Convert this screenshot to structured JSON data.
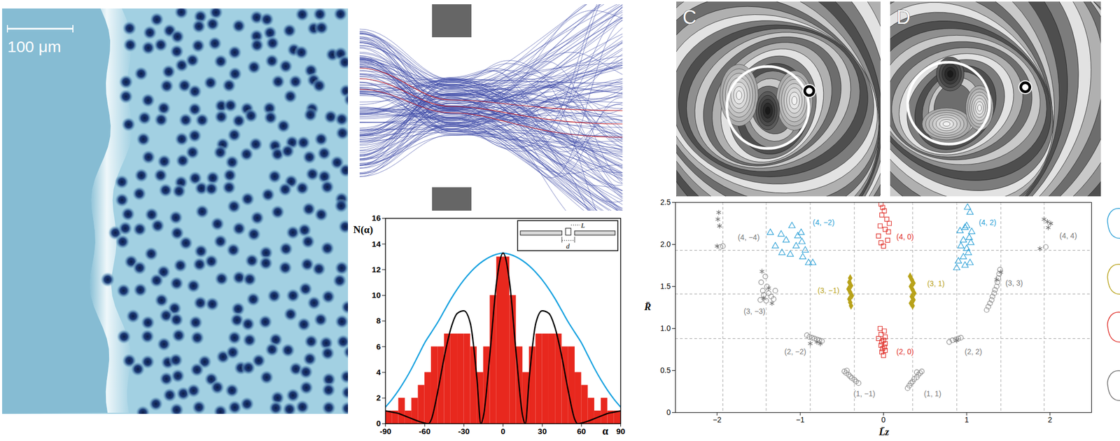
{
  "micrograph": {
    "scale_bar": "100 μm"
  },
  "contour_panels": {
    "labels": [
      "C",
      "D"
    ]
  },
  "chart_data": [
    {
      "type": "histogram",
      "ylabel": "N(α)",
      "xlabel": "α",
      "bins": [
        -90,
        -85,
        -80,
        -75,
        -70,
        -65,
        -60,
        -55,
        -50,
        -45,
        -40,
        -35,
        -30,
        -25,
        -20,
        -15,
        -10,
        -5,
        0,
        5,
        10,
        15,
        20,
        25,
        30,
        35,
        40,
        45,
        50,
        55,
        60,
        65,
        70,
        75,
        80,
        85,
        90
      ],
      "values": [
        1,
        1,
        2,
        1,
        2,
        3,
        4,
        6,
        6,
        7,
        7,
        7,
        7,
        6,
        4,
        6,
        10,
        13,
        13,
        10,
        6,
        4,
        6,
        7,
        7,
        7,
        7,
        6,
        6,
        4,
        3,
        2,
        1,
        2,
        1,
        1
      ],
      "color": "#e8281e",
      "xlim": [
        -90,
        90
      ],
      "xticks": [
        -90,
        -60,
        -30,
        0,
        30,
        60,
        90
      ],
      "ylim": [
        0,
        16
      ],
      "yticks": [
        0,
        2,
        4,
        6,
        8,
        10,
        12,
        14,
        16
      ],
      "series": [
        {
          "type": "line",
          "color": "#1ba3e0",
          "x": [
            -90,
            -85,
            -80,
            -75,
            -70,
            -65,
            -60,
            -55,
            -50,
            -45,
            -40,
            -35,
            -30,
            -25,
            -20,
            -15,
            -10,
            -5,
            0,
            5,
            10,
            15,
            20,
            25,
            30,
            35,
            40,
            45,
            50,
            55,
            60,
            65,
            70,
            75,
            80,
            85,
            90
          ],
          "values": [
            1.3,
            1.9,
            2.6,
            3.4,
            4.3,
            5.3,
            6.3,
            7.1,
            7.9,
            8.8,
            9.7,
            10.5,
            11.2,
            11.8,
            12.3,
            12.7,
            13.0,
            13.2,
            13.3,
            13.2,
            13.0,
            12.7,
            12.3,
            11.8,
            11.2,
            10.5,
            9.7,
            8.8,
            7.9,
            7.1,
            6.3,
            5.3,
            4.3,
            3.4,
            2.6,
            1.9,
            1.3
          ]
        },
        {
          "type": "line",
          "color": "#000000",
          "x": [
            -90,
            -85,
            -80,
            -75,
            -70,
            -65,
            -60,
            -57,
            -55,
            -50,
            -45,
            -40,
            -35,
            -30,
            -25,
            -20,
            -17,
            -15,
            -10,
            -5,
            0,
            5,
            10,
            15,
            17,
            20,
            25,
            30,
            35,
            40,
            45,
            50,
            55,
            57,
            60,
            65,
            70,
            75,
            80,
            85,
            90
          ],
          "values": [
            1.0,
            0.9,
            0.8,
            0.6,
            0.4,
            0.2,
            0.05,
            0,
            0.3,
            2.5,
            5.2,
            7.4,
            8.6,
            8.8,
            7.8,
            3.5,
            0,
            0.6,
            5.5,
            11.0,
            13.3,
            11.0,
            5.5,
            0.6,
            0,
            3.5,
            7.8,
            8.8,
            8.6,
            7.4,
            5.2,
            2.5,
            0.3,
            0,
            0.05,
            0.2,
            0.4,
            0.6,
            0.8,
            0.9,
            1.0
          ]
        }
      ],
      "inset_labels": [
        "L",
        "d"
      ]
    },
    {
      "type": "scatter",
      "xlabel": "L̄z",
      "ylabel": "R̄",
      "xlim": [
        -2.5,
        2.5
      ],
      "xticks": [
        {
          "value": -2,
          "label": "−2"
        },
        {
          "value": -1,
          "label": "−1"
        },
        0,
        1,
        2
      ],
      "ylim": [
        0,
        2.5
      ],
      "yticks": [
        0,
        0.5,
        {
          "value": 1,
          "label": "1.0"
        },
        1.5,
        {
          "value": 2,
          "label": "2.0"
        },
        2.5
      ],
      "reference_lines": {
        "x": [
          -1.93,
          -1.41,
          -0.88,
          -0.35,
          0.35,
          0.88,
          1.41,
          1.93
        ],
        "y": [
          0.88,
          1.41,
          1.93
        ],
        "line_style": "dashed"
      },
      "series": [
        {
          "color": "#8a8a8a",
          "marker": "circle",
          "x": [
            0.29,
            0.31,
            0.33,
            0.35,
            0.37,
            0.4,
            0.42,
            0.44,
            0.46,
            0.4,
            -0.3,
            -0.33,
            -0.35,
            -0.38,
            -0.4,
            -0.42,
            -0.45,
            -0.47,
            -0.44,
            -0.92,
            -0.89,
            -0.86,
            -0.83,
            -0.8,
            -0.77,
            -0.74,
            0.83,
            0.87,
            0.9,
            0.93,
            0.79,
            -1.42,
            -1.47,
            -1.4,
            -1.45,
            -1.38,
            -1.35,
            -1.32,
            -1.44,
            -1.48,
            -1.3,
            -1.41,
            1.24,
            1.26,
            1.28,
            1.3,
            1.31,
            1.33,
            1.34,
            1.36,
            1.37,
            1.38,
            1.39,
            1.4,
            -1.96,
            -1.93,
            1.95
          ],
          "values": [
            0.29,
            0.32,
            0.35,
            0.37,
            0.4,
            0.42,
            0.45,
            0.47,
            0.49,
            0.48,
            0.35,
            0.37,
            0.39,
            0.41,
            0.43,
            0.45,
            0.47,
            0.49,
            0.5,
            0.92,
            0.9,
            0.89,
            0.88,
            0.87,
            0.86,
            0.85,
            0.86,
            0.87,
            0.88,
            0.89,
            0.84,
            1.62,
            1.55,
            1.5,
            1.45,
            1.42,
            1.38,
            1.35,
            1.4,
            1.34,
            1.45,
            1.33,
            1.22,
            1.26,
            1.3,
            1.34,
            1.38,
            1.42,
            1.46,
            1.5,
            1.55,
            1.6,
            1.65,
            1.7,
            1.97,
            1.98,
            1.97
          ]
        },
        {
          "color": "#6e6e6e",
          "marker": "asterisk",
          "x": [
            -1.98,
            -1.99,
            -1.97,
            -2.0,
            1.93,
            1.97,
            2.01,
            1.98,
            1.88,
            -1.46,
            -1.38,
            -1.44,
            -1.34,
            1.36,
            1.41,
            -0.88,
            -0.8,
            -0.76,
            0.88
          ],
          "values": [
            2.38,
            2.3,
            2.22,
            1.98,
            2.3,
            2.27,
            2.25,
            2.2,
            1.95,
            1.68,
            1.48,
            1.36,
            1.3,
            1.58,
            1.67,
            0.82,
            0.84,
            0.82,
            0.86
          ]
        },
        {
          "color": "#2a9fd6",
          "marker": "triangle",
          "x": [
            -1.1,
            -1.23,
            -1.03,
            -1.17,
            -0.98,
            -1.05,
            -1.3,
            -0.94,
            -1.12,
            -0.97,
            -0.9,
            -0.85,
            -1.22,
            -1.36,
            -0.99,
            1.01,
            1.04,
            1.0,
            0.92,
            1.06,
            0.98,
            1.03,
            0.96,
            0.93,
            1.0,
            1.05,
            1.02,
            0.96,
            0.9,
            1.04,
            0.98,
            0.88
          ],
          "values": [
            2.22,
            2.12,
            2.1,
            2.05,
            2.03,
            1.98,
            1.98,
            1.93,
            1.88,
            1.85,
            1.78,
            1.78,
            1.9,
            2.14,
            2.14,
            2.44,
            2.38,
            2.22,
            2.16,
            2.15,
            2.2,
            2.08,
            2.05,
            1.98,
            1.95,
            2.02,
            1.9,
            1.85,
            1.8,
            1.78,
            1.75,
            1.72
          ]
        },
        {
          "color": "#e0302a",
          "marker": "square",
          "x": [
            -0.03,
            -0.01,
            0.01,
            -0.02,
            0.04,
            0.07,
            -0.04,
            0.02,
            0.06,
            -0.06,
            0.05,
            -0.03,
            0.0,
            -0.04,
            0.01,
            -0.03,
            0.02,
            -0.06,
            0.0,
            -0.02,
            0.02,
            -0.03,
            0.01,
            -0.01,
            0.02,
            -0.02,
            0.0
          ],
          "values": [
            2.48,
            2.44,
            2.4,
            2.35,
            2.3,
            2.25,
            2.22,
            2.18,
            2.15,
            2.1,
            2.05,
            2.02,
            1.98,
            1.0,
            0.97,
            0.93,
            0.9,
            0.88,
            0.86,
            0.84,
            0.82,
            0.8,
            0.78,
            0.76,
            0.74,
            0.72,
            0.68
          ]
        },
        {
          "color": "#b8a21a",
          "marker": "diamond",
          "x": [
            -0.4,
            -0.41,
            -0.39,
            -0.42,
            -0.4,
            -0.38,
            -0.41,
            -0.4,
            -0.39,
            0.32,
            0.34,
            0.36,
            0.33,
            0.35,
            0.37,
            0.34,
            0.36,
            0.33,
            0.35
          ],
          "values": [
            1.6,
            1.55,
            1.51,
            1.47,
            1.43,
            1.39,
            1.35,
            1.31,
            1.27,
            1.62,
            1.58,
            1.54,
            1.5,
            1.46,
            1.42,
            1.38,
            1.34,
            1.3,
            1.27
          ]
        }
      ],
      "annotations": [
        {
          "text": "(4, −4)",
          "x": -1.62,
          "y": 2.08,
          "color": "#7a7a7a"
        },
        {
          "text": "(4, −2)",
          "x": -0.72,
          "y": 2.26,
          "color": "#2a9fd6"
        },
        {
          "text": "(4, 0)",
          "x": 0.26,
          "y": 2.09,
          "color": "#e0302a"
        },
        {
          "text": "(4, 2)",
          "x": 1.25,
          "y": 2.26,
          "color": "#2a9fd6"
        },
        {
          "text": "(4, 4)",
          "x": 2.22,
          "y": 2.1,
          "color": "#7a7a7a"
        },
        {
          "text": "(3, −3)",
          "x": -1.55,
          "y": 1.2,
          "color": "#7a7a7a"
        },
        {
          "text": "(3, −1)",
          "x": -0.66,
          "y": 1.45,
          "color": "#b8a21a"
        },
        {
          "text": "(3, 1)",
          "x": 0.63,
          "y": 1.53,
          "color": "#b8a21a"
        },
        {
          "text": "(3, 3)",
          "x": 1.57,
          "y": 1.54,
          "color": "#7a7a7a"
        },
        {
          "text": "(2, −2)",
          "x": -1.06,
          "y": 0.72,
          "color": "#7a7a7a"
        },
        {
          "text": "(2, 0)",
          "x": 0.26,
          "y": 0.72,
          "color": "#e0302a"
        },
        {
          "text": "(2, 2)",
          "x": 1.08,
          "y": 0.72,
          "color": "#7a7a7a"
        },
        {
          "text": "(1, −1)",
          "x": -0.23,
          "y": 0.22,
          "color": "#7a7a7a"
        },
        {
          "text": "(1, 1)",
          "x": 0.59,
          "y": 0.22,
          "color": "#7a7a7a"
        }
      ]
    }
  ]
}
